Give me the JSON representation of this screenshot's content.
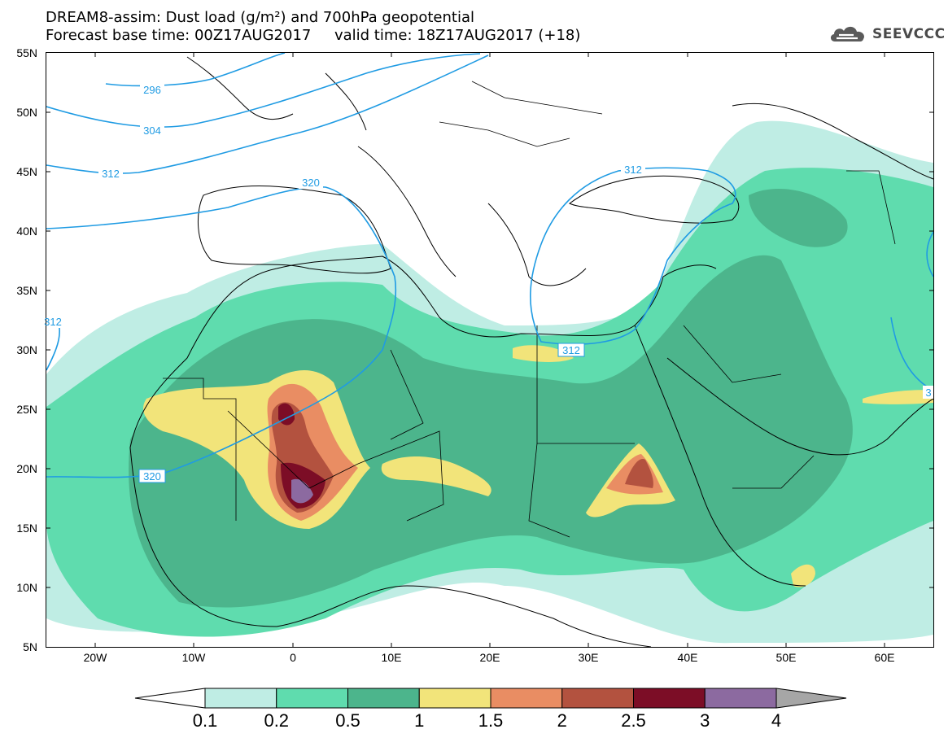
{
  "header": {
    "title_line1": "DREAM8-assim: Dust load (g/m²) and 700hPa geopotential",
    "title_line2": "Forecast base time: 00Z17AUG2017     valid time: 18Z17AUG2017 (+18)"
  },
  "logo": {
    "text": "SEEVCCC",
    "icon": "cloud-icon"
  },
  "map": {
    "lon_range": [
      -25,
      65
    ],
    "lat_range": [
      5,
      55
    ],
    "lat_ticks": [
      "55N",
      "50N",
      "45N",
      "40N",
      "35N",
      "30N",
      "25N",
      "20N",
      "15N",
      "10N",
      "5N"
    ],
    "lon_ticks": [
      "20W",
      "10W",
      "0",
      "10E",
      "20E",
      "30E",
      "40E",
      "50E",
      "60E"
    ],
    "contour_labels": [
      "296",
      "304",
      "312",
      "320",
      "312",
      "312",
      "320",
      "312",
      "3"
    ]
  },
  "colorbar": {
    "labels": [
      "0.1",
      "0.2",
      "0.5",
      "1",
      "1.5",
      "2",
      "2.5",
      "3",
      "4"
    ],
    "colors": [
      "#bfede4",
      "#5fdcae",
      "#4cb58c",
      "#f2e47a",
      "#e98d63",
      "#b3523f",
      "#7c0d26",
      "#8c6aa0",
      "#a6a6a6"
    ]
  }
}
